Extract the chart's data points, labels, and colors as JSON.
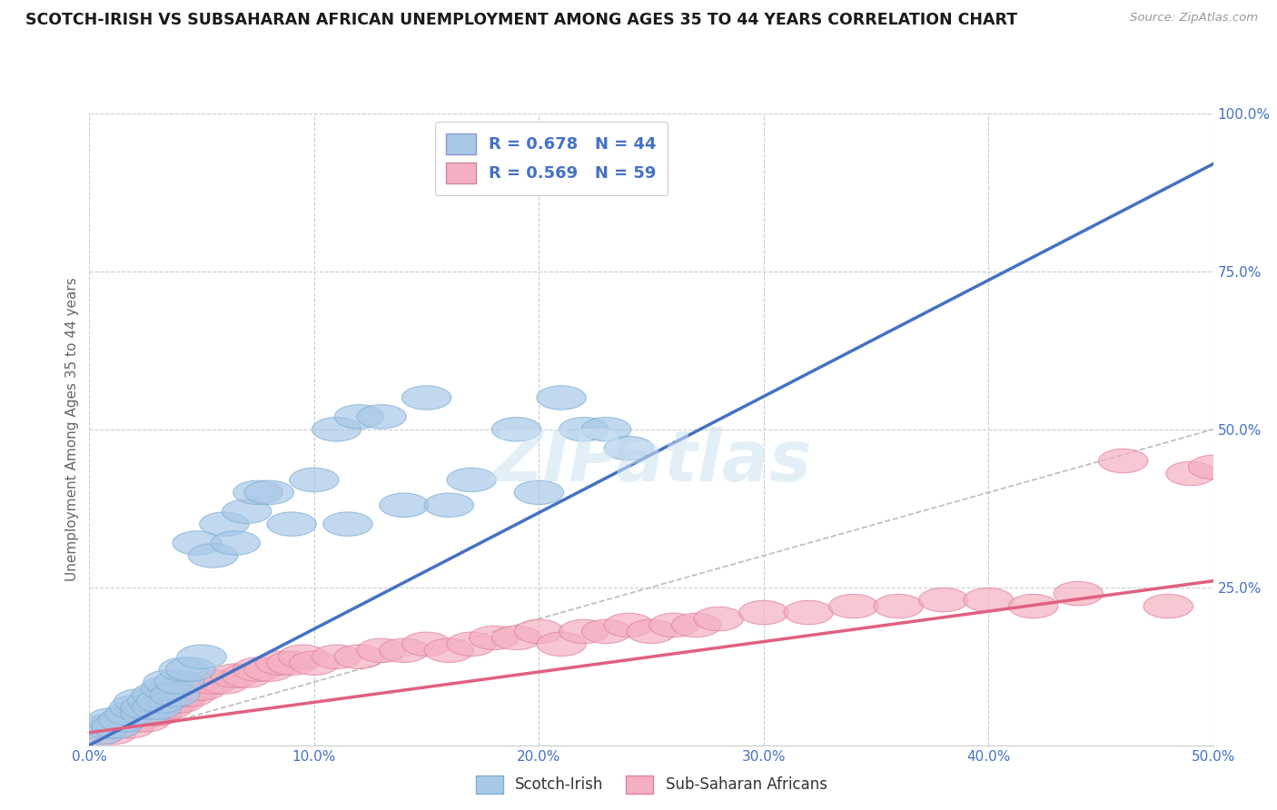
{
  "title": "SCOTCH-IRISH VS SUBSAHARAN AFRICAN UNEMPLOYMENT AMONG AGES 35 TO 44 YEARS CORRELATION CHART",
  "source": "Source: ZipAtlas.com",
  "ylabel": "Unemployment Among Ages 35 to 44 years",
  "xlim": [
    0,
    0.5
  ],
  "ylim": [
    0,
    1.0
  ],
  "xticks": [
    0.0,
    0.1,
    0.2,
    0.3,
    0.4,
    0.5
  ],
  "yticks": [
    0.0,
    0.25,
    0.5,
    0.75,
    1.0
  ],
  "xticklabels": [
    "0.0%",
    "10.0%",
    "20.0%",
    "30.0%",
    "40.0%",
    "50.0%"
  ],
  "yticklabels": [
    "",
    "25.0%",
    "50.0%",
    "75.0%",
    "100.0%"
  ],
  "blue_R": 0.678,
  "blue_N": 44,
  "pink_R": 0.569,
  "pink_N": 59,
  "blue_color": "#a8c8e8",
  "pink_color": "#f4b0c0",
  "blue_edge_color": "#7bafd4",
  "pink_edge_color": "#e080a0",
  "blue_line_color": "#4472c4",
  "pink_line_color": "#e06080",
  "blue_label": "Scotch-Irish",
  "pink_label": "Sub-Saharan Africans",
  "title_color": "#1a1a1a",
  "axis_label_color": "#666666",
  "tick_label_color": "#4472c4",
  "legend_R_color": "#4472c4",
  "watermark": "ZIPatlas",
  "blue_scatter_x": [
    0.005,
    0.008,
    0.01,
    0.012,
    0.015,
    0.018,
    0.02,
    0.022,
    0.025,
    0.025,
    0.028,
    0.03,
    0.03,
    0.032,
    0.034,
    0.035,
    0.038,
    0.04,
    0.042,
    0.045,
    0.048,
    0.05,
    0.055,
    0.06,
    0.065,
    0.07,
    0.075,
    0.08,
    0.09,
    0.1,
    0.11,
    0.115,
    0.12,
    0.13,
    0.14,
    0.15,
    0.16,
    0.17,
    0.19,
    0.2,
    0.21,
    0.22,
    0.23,
    0.24
  ],
  "blue_scatter_y": [
    0.02,
    0.03,
    0.04,
    0.03,
    0.04,
    0.05,
    0.06,
    0.07,
    0.05,
    0.06,
    0.07,
    0.06,
    0.08,
    0.07,
    0.09,
    0.1,
    0.08,
    0.1,
    0.12,
    0.12,
    0.32,
    0.14,
    0.3,
    0.35,
    0.32,
    0.37,
    0.4,
    0.4,
    0.35,
    0.42,
    0.5,
    0.35,
    0.52,
    0.52,
    0.38,
    0.55,
    0.38,
    0.42,
    0.5,
    0.4,
    0.55,
    0.5,
    0.5,
    0.47
  ],
  "pink_scatter_x": [
    0.005,
    0.008,
    0.01,
    0.012,
    0.015,
    0.018,
    0.02,
    0.022,
    0.025,
    0.028,
    0.03,
    0.032,
    0.035,
    0.038,
    0.04,
    0.042,
    0.045,
    0.048,
    0.05,
    0.055,
    0.06,
    0.065,
    0.07,
    0.075,
    0.08,
    0.085,
    0.09,
    0.095,
    0.1,
    0.11,
    0.12,
    0.13,
    0.14,
    0.15,
    0.16,
    0.17,
    0.18,
    0.19,
    0.2,
    0.21,
    0.22,
    0.23,
    0.24,
    0.25,
    0.26,
    0.27,
    0.28,
    0.3,
    0.32,
    0.34,
    0.36,
    0.38,
    0.4,
    0.42,
    0.44,
    0.46,
    0.48,
    0.49,
    0.5
  ],
  "pink_scatter_y": [
    0.02,
    0.03,
    0.02,
    0.03,
    0.04,
    0.03,
    0.04,
    0.05,
    0.04,
    0.05,
    0.05,
    0.06,
    0.06,
    0.07,
    0.07,
    0.08,
    0.08,
    0.09,
    0.09,
    0.1,
    0.1,
    0.11,
    0.11,
    0.12,
    0.12,
    0.13,
    0.13,
    0.14,
    0.13,
    0.14,
    0.14,
    0.15,
    0.15,
    0.16,
    0.15,
    0.16,
    0.17,
    0.17,
    0.18,
    0.16,
    0.18,
    0.18,
    0.19,
    0.18,
    0.19,
    0.19,
    0.2,
    0.21,
    0.21,
    0.22,
    0.22,
    0.23,
    0.23,
    0.22,
    0.24,
    0.45,
    0.22,
    0.43,
    0.44
  ],
  "blue_trend_x": [
    0.0,
    0.5
  ],
  "blue_trend_y": [
    0.0,
    0.92
  ],
  "pink_trend_x": [
    0.0,
    0.5
  ],
  "pink_trend_y": [
    0.02,
    0.26
  ],
  "ref_line_x": [
    0.0,
    0.5
  ],
  "ref_line_y": [
    0.0,
    0.5
  ],
  "background_color": "#ffffff",
  "grid_color": "#cccccc"
}
